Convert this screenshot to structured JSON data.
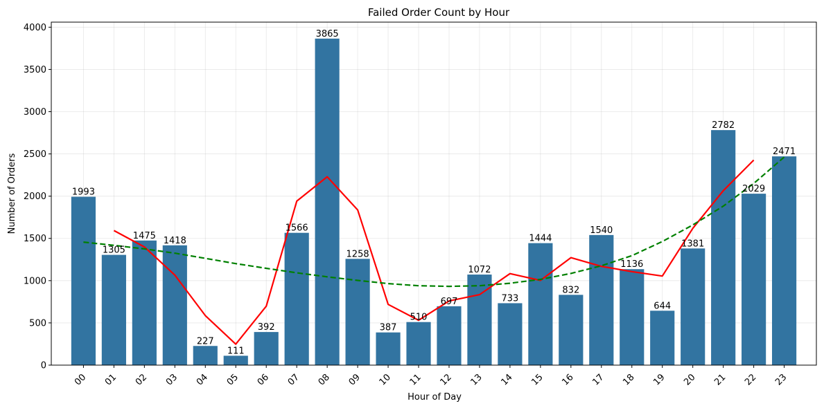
{
  "chart_data": {
    "type": "bar",
    "title": "Failed Order Count by Hour",
    "xlabel": "Hour of Day",
    "ylabel": "Number of Orders",
    "ylim": [
      0,
      4060
    ],
    "yticks": [
      0,
      500,
      1000,
      1500,
      2000,
      2500,
      3000,
      3500,
      4000
    ],
    "grid": true,
    "categories": [
      "00",
      "01",
      "02",
      "03",
      "04",
      "05",
      "06",
      "07",
      "08",
      "09",
      "10",
      "11",
      "12",
      "13",
      "14",
      "15",
      "16",
      "17",
      "18",
      "19",
      "20",
      "21",
      "22",
      "23"
    ],
    "values": [
      1993,
      1305,
      1475,
      1418,
      227,
      111,
      392,
      1566,
      3865,
      1258,
      387,
      510,
      697,
      1072,
      733,
      1444,
      832,
      1540,
      1136,
      644,
      1381,
      2782,
      2029,
      2471
    ],
    "bar_color": "#3274a1",
    "overlays": [
      {
        "type": "line",
        "style": "solid",
        "color": "#ff0000",
        "x_start": 1,
        "values": [
          1593,
          1399,
          1066,
          586,
          248,
          697,
          1941,
          2230,
          1837,
          719,
          531,
          760,
          834,
          1083,
          1003,
          1272,
          1169,
          1107,
          1054,
          1619,
          2064,
          2427
        ]
      },
      {
        "type": "line",
        "style": "dashed",
        "color": "#008000",
        "x_start": 0,
        "values": [
          1456,
          1418,
          1376,
          1325,
          1264,
          1202,
          1146,
          1093,
          1045,
          1003,
          965,
          940,
          932,
          940,
          969,
          1015,
          1085,
          1176,
          1296,
          1463,
          1659,
          1882,
          2150,
          2463
        ]
      }
    ]
  }
}
